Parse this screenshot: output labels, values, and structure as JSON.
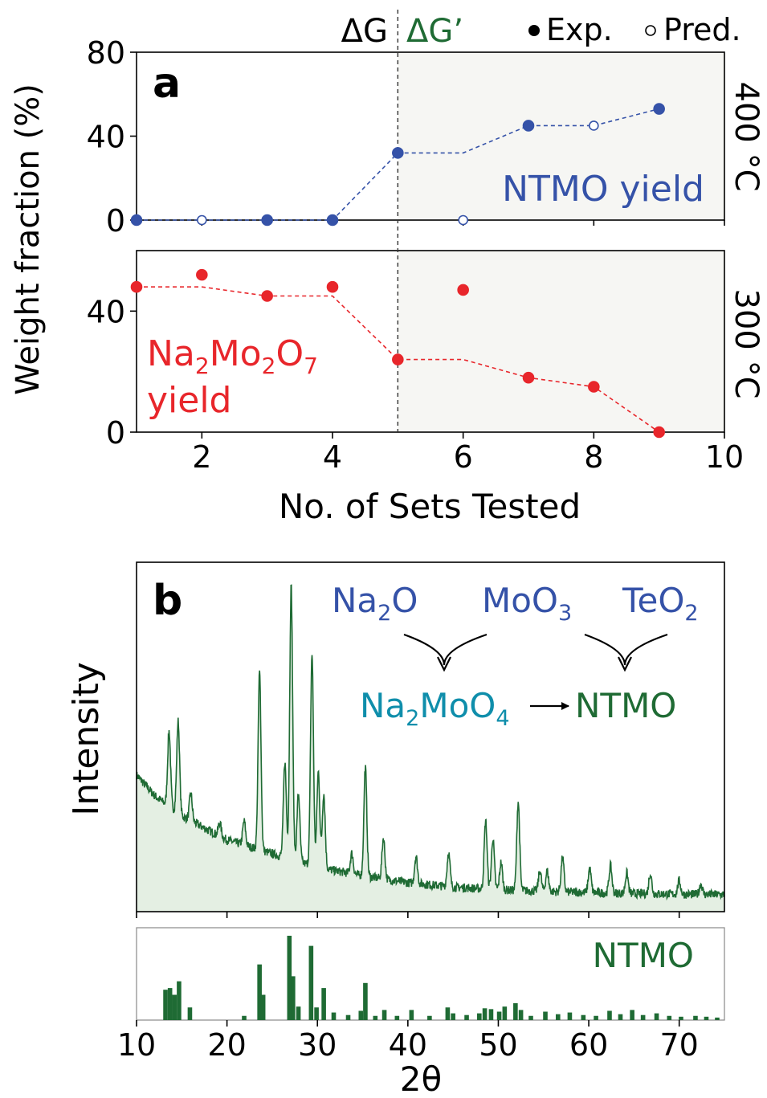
{
  "colors": {
    "ntmo": "#3552a8",
    "na2mo2o7": "#e8262b",
    "xrd": "#1f6b34",
    "xrd_fill": "#e4efe3",
    "shade": "#f6f6f3",
    "precursor": "#3552a8",
    "intermediate": "#0f8eab",
    "product": "#1f6b34"
  },
  "labels": {
    "panel_a": "a",
    "panel_b": "b",
    "dg": "ΔG",
    "dg_prime": "ΔG’",
    "legend_exp": "Exp.",
    "legend_pred": "Pred.",
    "temp_top": "400 °C",
    "temp_bottom": "300 °C",
    "ylabel_a": "Weight fraction (%)",
    "xlabel_a": "No. of Sets Tested",
    "ntmo_yield": "NTMO yield",
    "na2mo2o7_yield": "Na₂Mo₂O₇ yield",
    "ylabel_b": "Intensity",
    "xlabel_b": "2θ",
    "ref_label": "NTMO",
    "scheme": {
      "na2o": "Na₂O",
      "moo3": "MoO₃",
      "teo2": "TeO₂",
      "na2moo4": "Na₂MoO₄",
      "product": "NTMO"
    }
  },
  "chart_data": [
    {
      "type": "line",
      "panel": "a-top",
      "title": "",
      "xlabel": "No. of Sets Tested",
      "ylabel": "Weight fraction (%)",
      "xlim": [
        1,
        10
      ],
      "ylim": [
        0,
        80
      ],
      "yticks": [
        0,
        40,
        80
      ],
      "xticks": [
        2,
        4,
        6,
        8,
        10
      ],
      "annotation": "NTMO yield",
      "temperature_label": "400 °C",
      "shaded_from_x": 5,
      "vline_x": 5,
      "series": [
        {
          "name": "Exp.",
          "x": [
            1,
            3,
            4,
            5,
            7,
            9
          ],
          "y": [
            0,
            0,
            0,
            32,
            45,
            53
          ],
          "marker": "filled"
        },
        {
          "name": "Pred.",
          "x": [
            2,
            6,
            8
          ],
          "y": [
            0,
            0,
            45
          ],
          "marker": "open"
        },
        {
          "name": "",
          "style": "dashed",
          "x": [
            1,
            2,
            3,
            4,
            5,
            6,
            7,
            8,
            9
          ],
          "y": [
            0,
            0,
            0,
            0,
            32,
            32,
            45,
            45,
            53
          ]
        }
      ]
    },
    {
      "type": "line",
      "panel": "a-bottom",
      "title": "",
      "xlabel": "No. of Sets Tested",
      "ylabel": "Weight fraction (%)",
      "xlim": [
        1,
        10
      ],
      "ylim": [
        0,
        60
      ],
      "yticks": [
        0,
        40
      ],
      "xticks": [
        2,
        4,
        6,
        8,
        10
      ],
      "annotation": "Na₂Mo₂O₇ yield",
      "temperature_label": "300 °C",
      "shaded_from_x": 5,
      "vline_x": 5,
      "series": [
        {
          "name": "Exp.",
          "x": [
            1,
            2,
            3,
            4,
            5,
            6,
            7,
            8,
            9
          ],
          "y": [
            48,
            52,
            45,
            48,
            24,
            47,
            18,
            15,
            0
          ],
          "marker": "filled"
        },
        {
          "name": "",
          "style": "dashed",
          "x": [
            1,
            2,
            3,
            4,
            5,
            6,
            7,
            8,
            9
          ],
          "y": [
            48,
            48,
            45,
            45,
            24,
            24,
            18,
            15,
            0
          ]
        }
      ]
    },
    {
      "type": "line",
      "panel": "b-pattern",
      "title": "",
      "xlabel": "2θ",
      "ylabel": "Intensity",
      "xlim": [
        10,
        75
      ],
      "ylim": [
        0,
        100
      ],
      "xticks": [
        10,
        20,
        30,
        40,
        50,
        60,
        70
      ],
      "background": [
        [
          10,
          40
        ],
        [
          12,
          34
        ],
        [
          15,
          28
        ],
        [
          20,
          21
        ],
        [
          25,
          17
        ],
        [
          30,
          13
        ],
        [
          35,
          10.5
        ],
        [
          40,
          8.5
        ],
        [
          45,
          7.2
        ],
        [
          50,
          6.4
        ],
        [
          55,
          6
        ],
        [
          60,
          5.6
        ],
        [
          65,
          5.3
        ],
        [
          70,
          5.1
        ],
        [
          75,
          5
        ]
      ],
      "peaks": [
        [
          13.6,
          22
        ],
        [
          14.6,
          27
        ],
        [
          16.0,
          8
        ],
        [
          19.2,
          4
        ],
        [
          21.9,
          7
        ],
        [
          23.6,
          52
        ],
        [
          26.4,
          28
        ],
        [
          27.1,
          80
        ],
        [
          27.9,
          20
        ],
        [
          29.4,
          62
        ],
        [
          30.1,
          28
        ],
        [
          30.7,
          22
        ],
        [
          33.8,
          6
        ],
        [
          35.3,
          32
        ],
        [
          37.3,
          12
        ],
        [
          40.9,
          8
        ],
        [
          44.5,
          10
        ],
        [
          48.6,
          20
        ],
        [
          49.4,
          15
        ],
        [
          50.3,
          8
        ],
        [
          52.2,
          26
        ],
        [
          54.6,
          6
        ],
        [
          55.4,
          6
        ],
        [
          57.1,
          10
        ],
        [
          60.1,
          7
        ],
        [
          62.4,
          8
        ],
        [
          64.2,
          6
        ],
        [
          66.8,
          6
        ],
        [
          70.0,
          4
        ],
        [
          72.4,
          3
        ]
      ]
    },
    {
      "type": "bar",
      "panel": "b-reference",
      "name": "NTMO",
      "xlim": [
        10,
        75
      ],
      "x": [
        13.2,
        13.7,
        14.2,
        14.7,
        15.9,
        21.9,
        23.6,
        24.0,
        26.9,
        27.3,
        27.9,
        29.3,
        29.9,
        30.7,
        31.8,
        33.4,
        34.8,
        35.3,
        36.4,
        37.4,
        38.8,
        40.4,
        42.4,
        44.4,
        45.0,
        46.5,
        47.9,
        48.5,
        49.2,
        50.1,
        50.7,
        51.9,
        52.5,
        53.6,
        55.2,
        56.6,
        57.9,
        59.4,
        60.8,
        62.3,
        63.5,
        64.8,
        66.0,
        67.5,
        68.9,
        70.2,
        71.8,
        73.0,
        74.2
      ],
      "y": [
        36,
        38,
        30,
        46,
        15,
        5,
        66,
        30,
        100,
        52,
        16,
        88,
        15,
        38,
        9,
        6,
        11,
        44,
        5,
        12,
        5,
        12,
        5,
        15,
        8,
        6,
        8,
        14,
        13,
        10,
        16,
        20,
        12,
        5,
        10,
        7,
        9,
        6,
        5,
        11,
        7,
        12,
        6,
        8,
        5,
        4,
        5,
        4,
        3
      ]
    }
  ],
  "scheme_arrows": [
    "Na₂O + MoO₃ → Na₂MoO₄",
    "Na₂MoO₄ + TeO₂ → NTMO"
  ]
}
